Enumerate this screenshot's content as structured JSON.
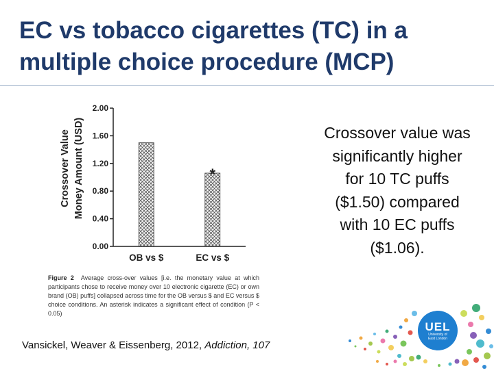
{
  "slide": {
    "title": "EC vs tobacco cigarettes (TC) in a multiple choice procedure (MCP)",
    "callout": "Crossover value was significantly higher for 10 TC puffs ($1.50) compared with 10 EC puffs ($1.06).",
    "citation_prefix": "Vansickel, Weaver & Eissenberg, 2012, ",
    "citation_journal": "Addiction, 107"
  },
  "figure": {
    "caption_label": "Figure 2",
    "caption_text": "Average cross-over values [i.e. the monetary value at which participants chose to receive money over 10 electronic cigarette (EC) or own brand (OB) puffs] collapsed across time for the OB versus $ and EC versus $ choice conditions. An asterisk indicates a significant effect of condition (P < 0.05)"
  },
  "chart_data": {
    "type": "bar",
    "categories": [
      "OB vs $",
      "EC vs $"
    ],
    "values": [
      1.5,
      1.06
    ],
    "ylabel_line1": "Crossover Value",
    "ylabel_line2": "Money Amount (USD)",
    "xlabel": "",
    "ylim": [
      0,
      2.0
    ],
    "yticks": [
      "0.00",
      "0.40",
      "0.80",
      "1.20",
      "1.60",
      "2.00"
    ],
    "annotations": [
      {
        "category": "EC vs $",
        "text": "*"
      }
    ],
    "grid": false,
    "bar_fill": "crosshatch"
  },
  "logo": {
    "name": "UEL",
    "subtitle_line1": "University of",
    "subtitle_line2": "East London",
    "color": "#1e7fd0"
  }
}
